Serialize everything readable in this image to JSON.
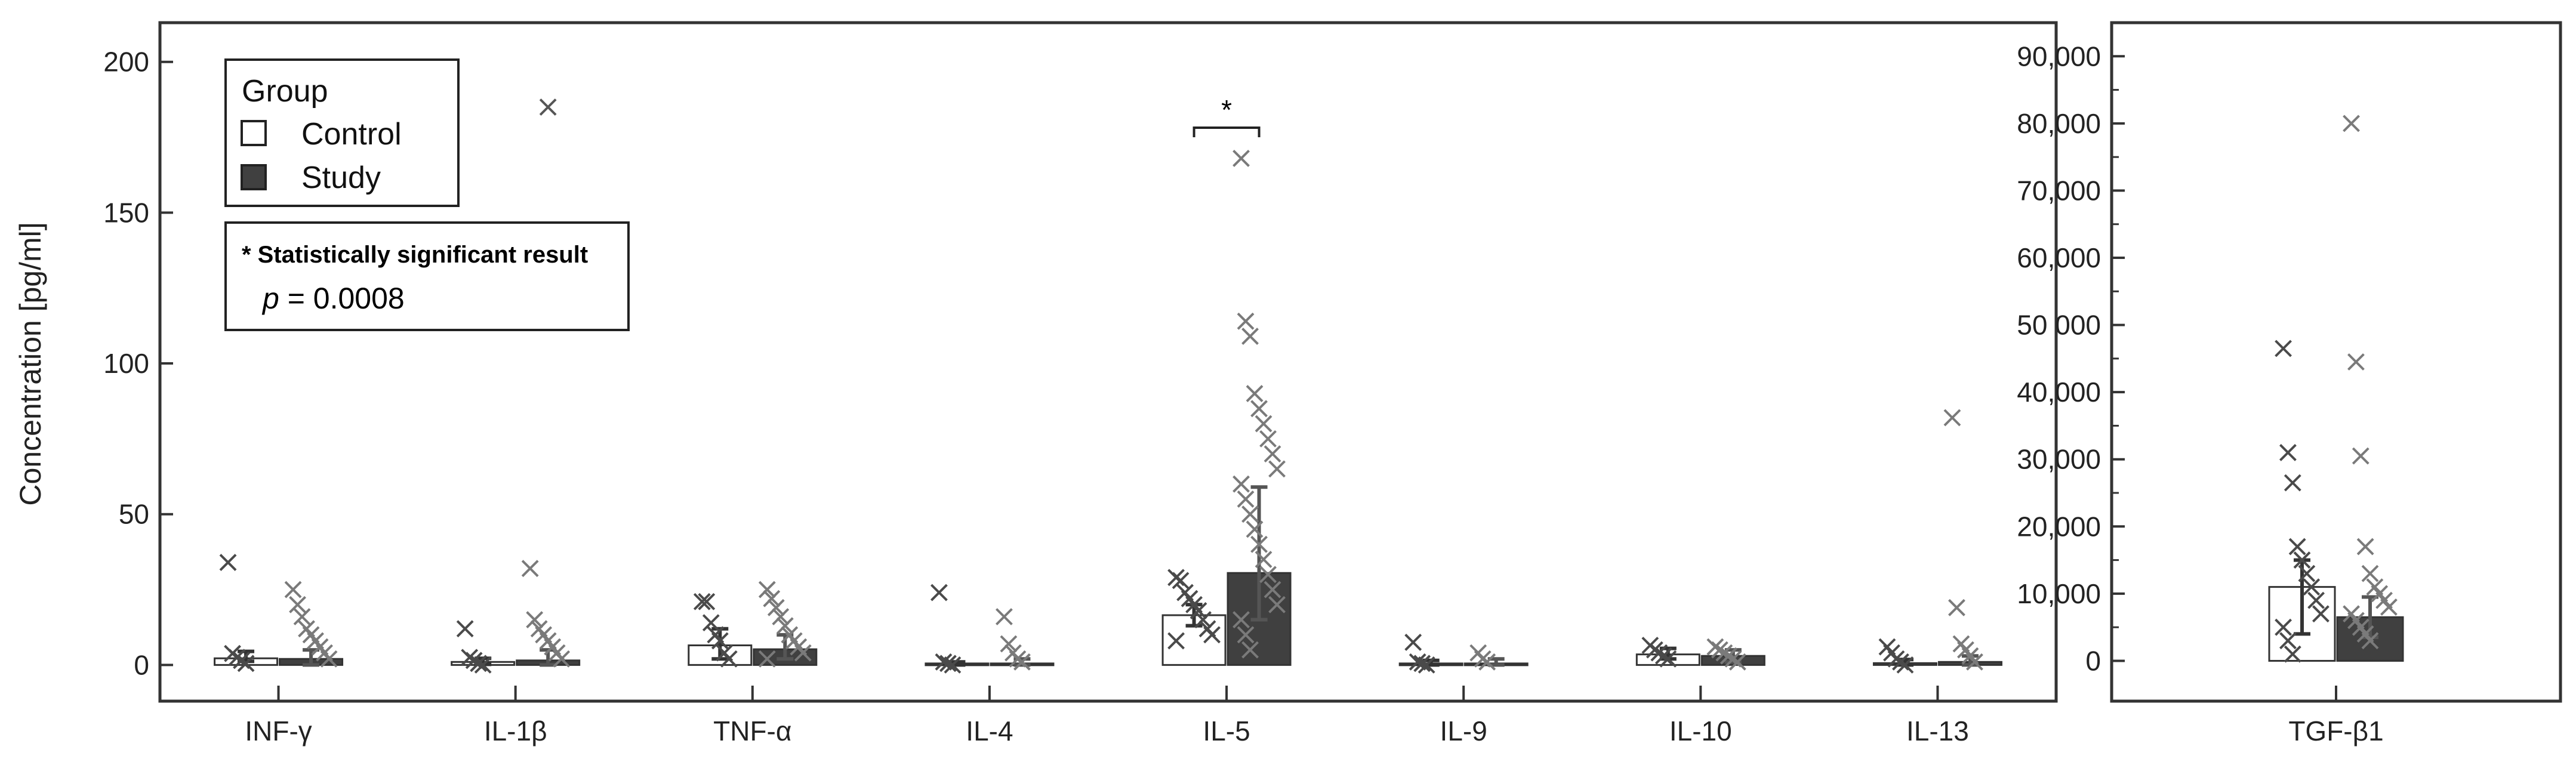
{
  "chart_data": [
    {
      "type": "bar",
      "title": "",
      "xlabel": "",
      "ylabel": "Concentration [pg/ml]",
      "ylim": [
        -12,
        213
      ],
      "yticks": [
        "0",
        "50",
        "100",
        "150",
        "200"
      ],
      "ytick_values": [
        0,
        50,
        100,
        150,
        200
      ],
      "grid": false,
      "categories": [
        "INF-γ",
        "IL-1β",
        "TNF-α",
        "IL-4",
        "IL-5",
        "IL-9",
        "IL-10",
        "IL-13"
      ],
      "series": [
        {
          "name": "Control",
          "fill": "#ffffff",
          "values": [
            2.2,
            1.0,
            6.5,
            0.5,
            16.5,
            0.5,
            3.5,
            0.6
          ],
          "error": [
            [
              1.2,
              4.5
            ],
            [
              0.2,
              2.2
            ],
            [
              2,
              12
            ],
            [
              0,
              1
            ],
            [
              13,
              20
            ],
            [
              0,
              1.5
            ],
            [
              2,
              5.5
            ],
            [
              0,
              1.8
            ]
          ],
          "outliers": [
            [
              34,
              3.8,
              2.5,
              1.5,
              0.5
            ],
            [
              12,
              2.5,
              1.5,
              0.5,
              0
            ],
            [
              21,
              21,
              14,
              10,
              8,
              4,
              2
            ],
            [
              24,
              1,
              0.5,
              0
            ],
            [
              29,
              28,
              24,
              22,
              20,
              18,
              15,
              12,
              10,
              8
            ],
            [
              7.5,
              1,
              0.5,
              0
            ],
            [
              6.5,
              5,
              4,
              3,
              2
            ],
            [
              6,
              4,
              2,
              1,
              0
            ]
          ]
        },
        {
          "name": "Study",
          "fill": "#404040",
          "values": [
            2.0,
            1.5,
            5.2,
            0.5,
            30.5,
            0.5,
            3.0,
            1.0
          ],
          "error": [
            [
              0,
              5
            ],
            [
              0,
              5
            ],
            [
              2,
              10
            ],
            [
              0,
              2
            ],
            [
              15,
              59
            ],
            [
              0,
              2
            ],
            [
              1,
              5
            ],
            [
              0,
              3
            ]
          ],
          "outliers": [
            [
              25,
              20,
              16,
              12,
              10,
              8,
              6,
              4,
              2
            ],
            [
              32,
              15,
              12,
              10,
              8,
              6,
              4,
              2
            ],
            [
              25,
              22,
              19,
              16,
              13,
              10,
              8,
              6,
              4,
              2
            ],
            [
              16,
              7,
              4,
              2,
              1
            ],
            [
              168,
              114,
              109,
              90,
              85,
              80,
              75,
              70,
              65,
              60,
              55,
              50,
              45,
              40,
              35,
              30,
              25,
              20,
              15,
              10,
              5
            ],
            [
              4,
              2,
              1
            ],
            [
              6,
              5,
              4,
              3,
              2,
              1
            ],
            [
              82,
              19,
              7,
              5,
              3,
              1
            ]
          ]
        }
      ],
      "overflow_outliers": [
        {
          "category": "IL-1β",
          "value": 185
        }
      ],
      "legend": {
        "title": "Group",
        "entries": [
          "Control",
          "Study"
        ],
        "placement": "top-left"
      },
      "significance": {
        "category": "IL-5",
        "symbol": "*"
      },
      "note": {
        "heading": "* Statistically significant result",
        "p_label": "p",
        "p_value": " = 0.0008"
      }
    },
    {
      "type": "bar",
      "title": "",
      "xlabel": "",
      "ylabel": "",
      "ylim": [
        -6000,
        95000
      ],
      "yticks": [
        "0",
        "10,000",
        "20,000",
        "30,000",
        "40,000",
        "50 000",
        "60,000",
        "70,000",
        "80,000",
        "90,000"
      ],
      "ytick_values": [
        0,
        10000,
        20000,
        30000,
        40000,
        50000,
        60000,
        70000,
        80000,
        90000
      ],
      "grid": false,
      "categories": [
        "TGF-β1"
      ],
      "series": [
        {
          "name": "Control",
          "fill": "#ffffff",
          "values": [
            11000
          ],
          "error": [
            [
              4000,
              15000
            ]
          ],
          "outliers": [
            [
              46500,
              31000,
              26500,
              17000,
              15000,
              13000,
              11000,
              9000,
              7000,
              5000,
              3000,
              1000
            ]
          ]
        },
        {
          "name": "Study",
          "fill": "#404040",
          "values": [
            6500
          ],
          "error": [
            [
              3500,
              9500
            ]
          ],
          "outliers": [
            [
              80000,
              44500,
              30500,
              17000,
              13000,
              11000,
              10000,
              9000,
              8000,
              7000,
              6000,
              5000,
              4000,
              3000
            ]
          ]
        }
      ]
    }
  ]
}
